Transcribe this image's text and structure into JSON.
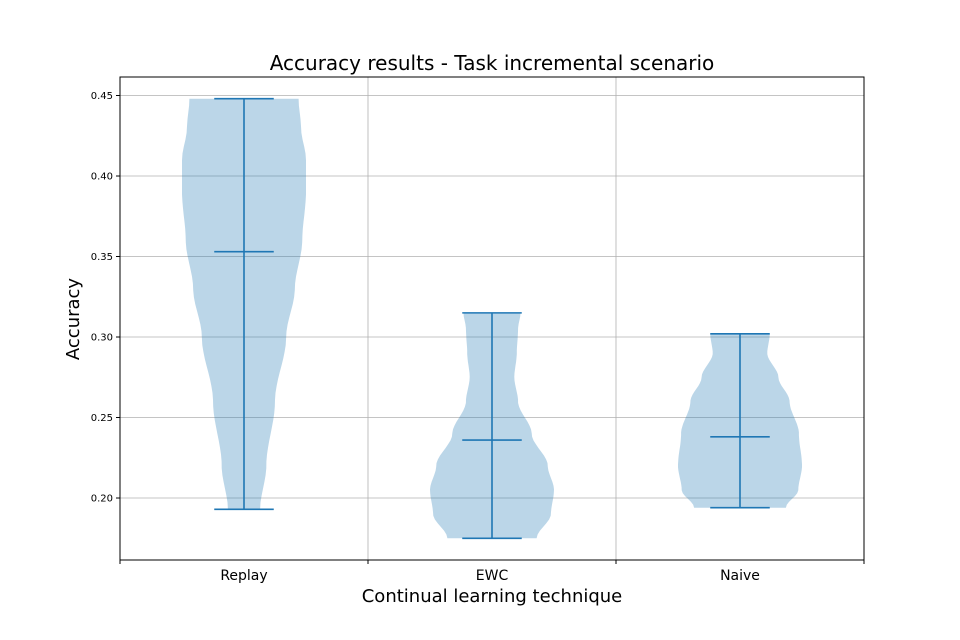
{
  "chart_data": {
    "type": "violin",
    "title": "Accuracy results - Task incremental scenario",
    "xlabel": "Continual learning technique",
    "ylabel": "Accuracy",
    "categories": [
      "Replay",
      "EWC",
      "Naive"
    ],
    "ylim": [
      0.1615,
      0.4615
    ],
    "yticks": [
      0.2,
      0.25,
      0.3,
      0.35,
      0.4,
      0.45
    ],
    "ytick_labels": [
      "0.20",
      "0.25",
      "0.30",
      "0.35",
      "0.40",
      "0.45"
    ],
    "grid": true,
    "colors": {
      "body": "#1f77b4",
      "body_opacity": 0.3,
      "lines": "#1f77b4",
      "grid": "#b0b0b0"
    },
    "violins": [
      {
        "category": "Replay",
        "min": 0.193,
        "max": 0.448,
        "median": 0.353,
        "profile": [
          [
            0.193,
            0.26
          ],
          [
            0.22,
            0.36
          ],
          [
            0.26,
            0.5
          ],
          [
            0.3,
            0.68
          ],
          [
            0.33,
            0.82
          ],
          [
            0.36,
            0.94
          ],
          [
            0.39,
            1.0
          ],
          [
            0.41,
            1.0
          ],
          [
            0.43,
            0.92
          ],
          [
            0.448,
            0.88
          ]
        ]
      },
      {
        "category": "EWC",
        "min": 0.175,
        "max": 0.315,
        "median": 0.236,
        "profile": [
          [
            0.175,
            0.72
          ],
          [
            0.19,
            0.95
          ],
          [
            0.205,
            1.0
          ],
          [
            0.22,
            0.9
          ],
          [
            0.24,
            0.64
          ],
          [
            0.26,
            0.42
          ],
          [
            0.275,
            0.36
          ],
          [
            0.29,
            0.4
          ],
          [
            0.305,
            0.42
          ],
          [
            0.315,
            0.46
          ]
        ]
      },
      {
        "category": "Naive",
        "min": 0.194,
        "max": 0.302,
        "median": 0.238,
        "profile": [
          [
            0.194,
            0.74
          ],
          [
            0.205,
            0.94
          ],
          [
            0.22,
            1.0
          ],
          [
            0.24,
            0.95
          ],
          [
            0.26,
            0.8
          ],
          [
            0.275,
            0.62
          ],
          [
            0.29,
            0.44
          ],
          [
            0.302,
            0.48
          ]
        ]
      }
    ]
  }
}
